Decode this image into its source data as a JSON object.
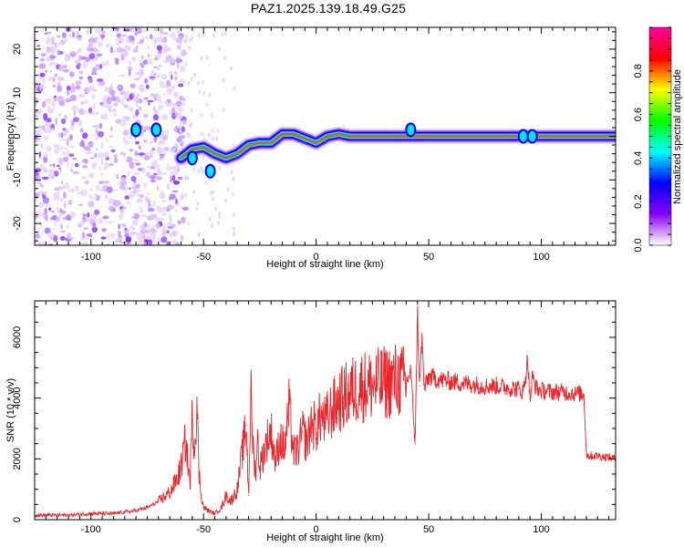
{
  "title": "PAZ1.2025.139.18.49.G25",
  "chart_data": [
    {
      "type": "heatmap",
      "xlabel": "Height of straight line (km)",
      "ylabel": "Frequency (Hz)",
      "xlim": [
        -125,
        133
      ],
      "ylim": [
        -25,
        25
      ],
      "x_ticks": [
        -100,
        -50,
        0,
        50,
        100
      ],
      "y_ticks": [
        -20,
        -10,
        0,
        10,
        20
      ],
      "grid": false,
      "colorbar": {
        "label": "Normalized spectral amplitude",
        "range": [
          0,
          1
        ],
        "ticks": [
          0.0,
          0.2,
          0.4,
          0.6,
          0.8
        ],
        "colormap": [
          "#ffffff",
          "#8a00ff",
          "#0000ff",
          "#00ffff",
          "#00ff00",
          "#ffff00",
          "#ff0000",
          "#ff00a0"
        ]
      },
      "ridge": {
        "x": [
          -60,
          -55,
          -50,
          -45,
          -40,
          -35,
          -30,
          -25,
          -20,
          -15,
          -10,
          -5,
          0,
          5,
          10,
          15,
          20,
          40,
          45,
          60,
          90,
          95,
          100,
          133
        ],
        "freq": [
          -5,
          -3,
          -2.5,
          -4,
          -5,
          -4,
          -2,
          -1.5,
          -1.5,
          0.5,
          0.5,
          -0.5,
          -1.5,
          0,
          0.5,
          0,
          0,
          0,
          0,
          0,
          0,
          0,
          0,
          0
        ]
      }
    },
    {
      "type": "line",
      "xlabel": "Height of straight line (km)",
      "ylabel": "SNR (10 * v/v)",
      "xlim": [
        -125,
        133
      ],
      "ylim": [
        0,
        7200
      ],
      "x_ticks": [
        -100,
        -50,
        0,
        50,
        100
      ],
      "y_ticks": [
        0,
        2000,
        4000,
        6000
      ],
      "grid": false,
      "series": [
        {
          "color": "#e8262b",
          "x": [
            -125,
            -110,
            -100,
            -90,
            -80,
            -75,
            -70,
            -65,
            -62,
            -60,
            -58,
            -56,
            -55,
            -54,
            -53,
            -52,
            -51,
            -50,
            -48,
            -45,
            -42,
            -40,
            -38,
            -35,
            -33,
            -31,
            -30,
            -29,
            -28,
            -27,
            -26,
            -25,
            -22,
            -20,
            -18,
            -16,
            -14,
            -12,
            -10,
            -8,
            -6,
            -4,
            -2,
            0,
            2,
            4,
            6,
            8,
            10,
            12,
            15,
            20,
            25,
            30,
            35,
            40,
            42,
            44,
            45,
            46,
            47,
            48,
            50,
            55,
            60,
            65,
            70,
            75,
            80,
            85,
            90,
            92,
            94,
            95,
            96,
            98,
            100,
            105,
            110,
            115,
            118,
            119,
            120,
            121,
            125,
            130,
            133
          ],
          "y": [
            150,
            150,
            200,
            200,
            300,
            400,
            600,
            900,
            1300,
            1700,
            2600,
            1200,
            3500,
            2300,
            4000,
            1500,
            800,
            400,
            300,
            200,
            400,
            800,
            600,
            1000,
            2100,
            3100,
            800,
            4200,
            2400,
            1500,
            2600,
            1700,
            2600,
            2900,
            1900,
            2700,
            2300,
            3700,
            2200,
            2300,
            2900,
            2500,
            3200,
            3000,
            3400,
            3200,
            3500,
            3700,
            3900,
            4000,
            4200,
            4400,
            4400,
            4500,
            4600,
            4500,
            4900,
            2500,
            6900,
            4400,
            6000,
            4300,
            4700,
            4600,
            4550,
            4500,
            4450,
            4400,
            4400,
            4350,
            4300,
            4200,
            5300,
            3900,
            4700,
            4300,
            4250,
            4200,
            4200,
            4150,
            4150,
            4100,
            2150,
            2100,
            2100,
            2050,
            2000
          ]
        }
      ]
    }
  ]
}
